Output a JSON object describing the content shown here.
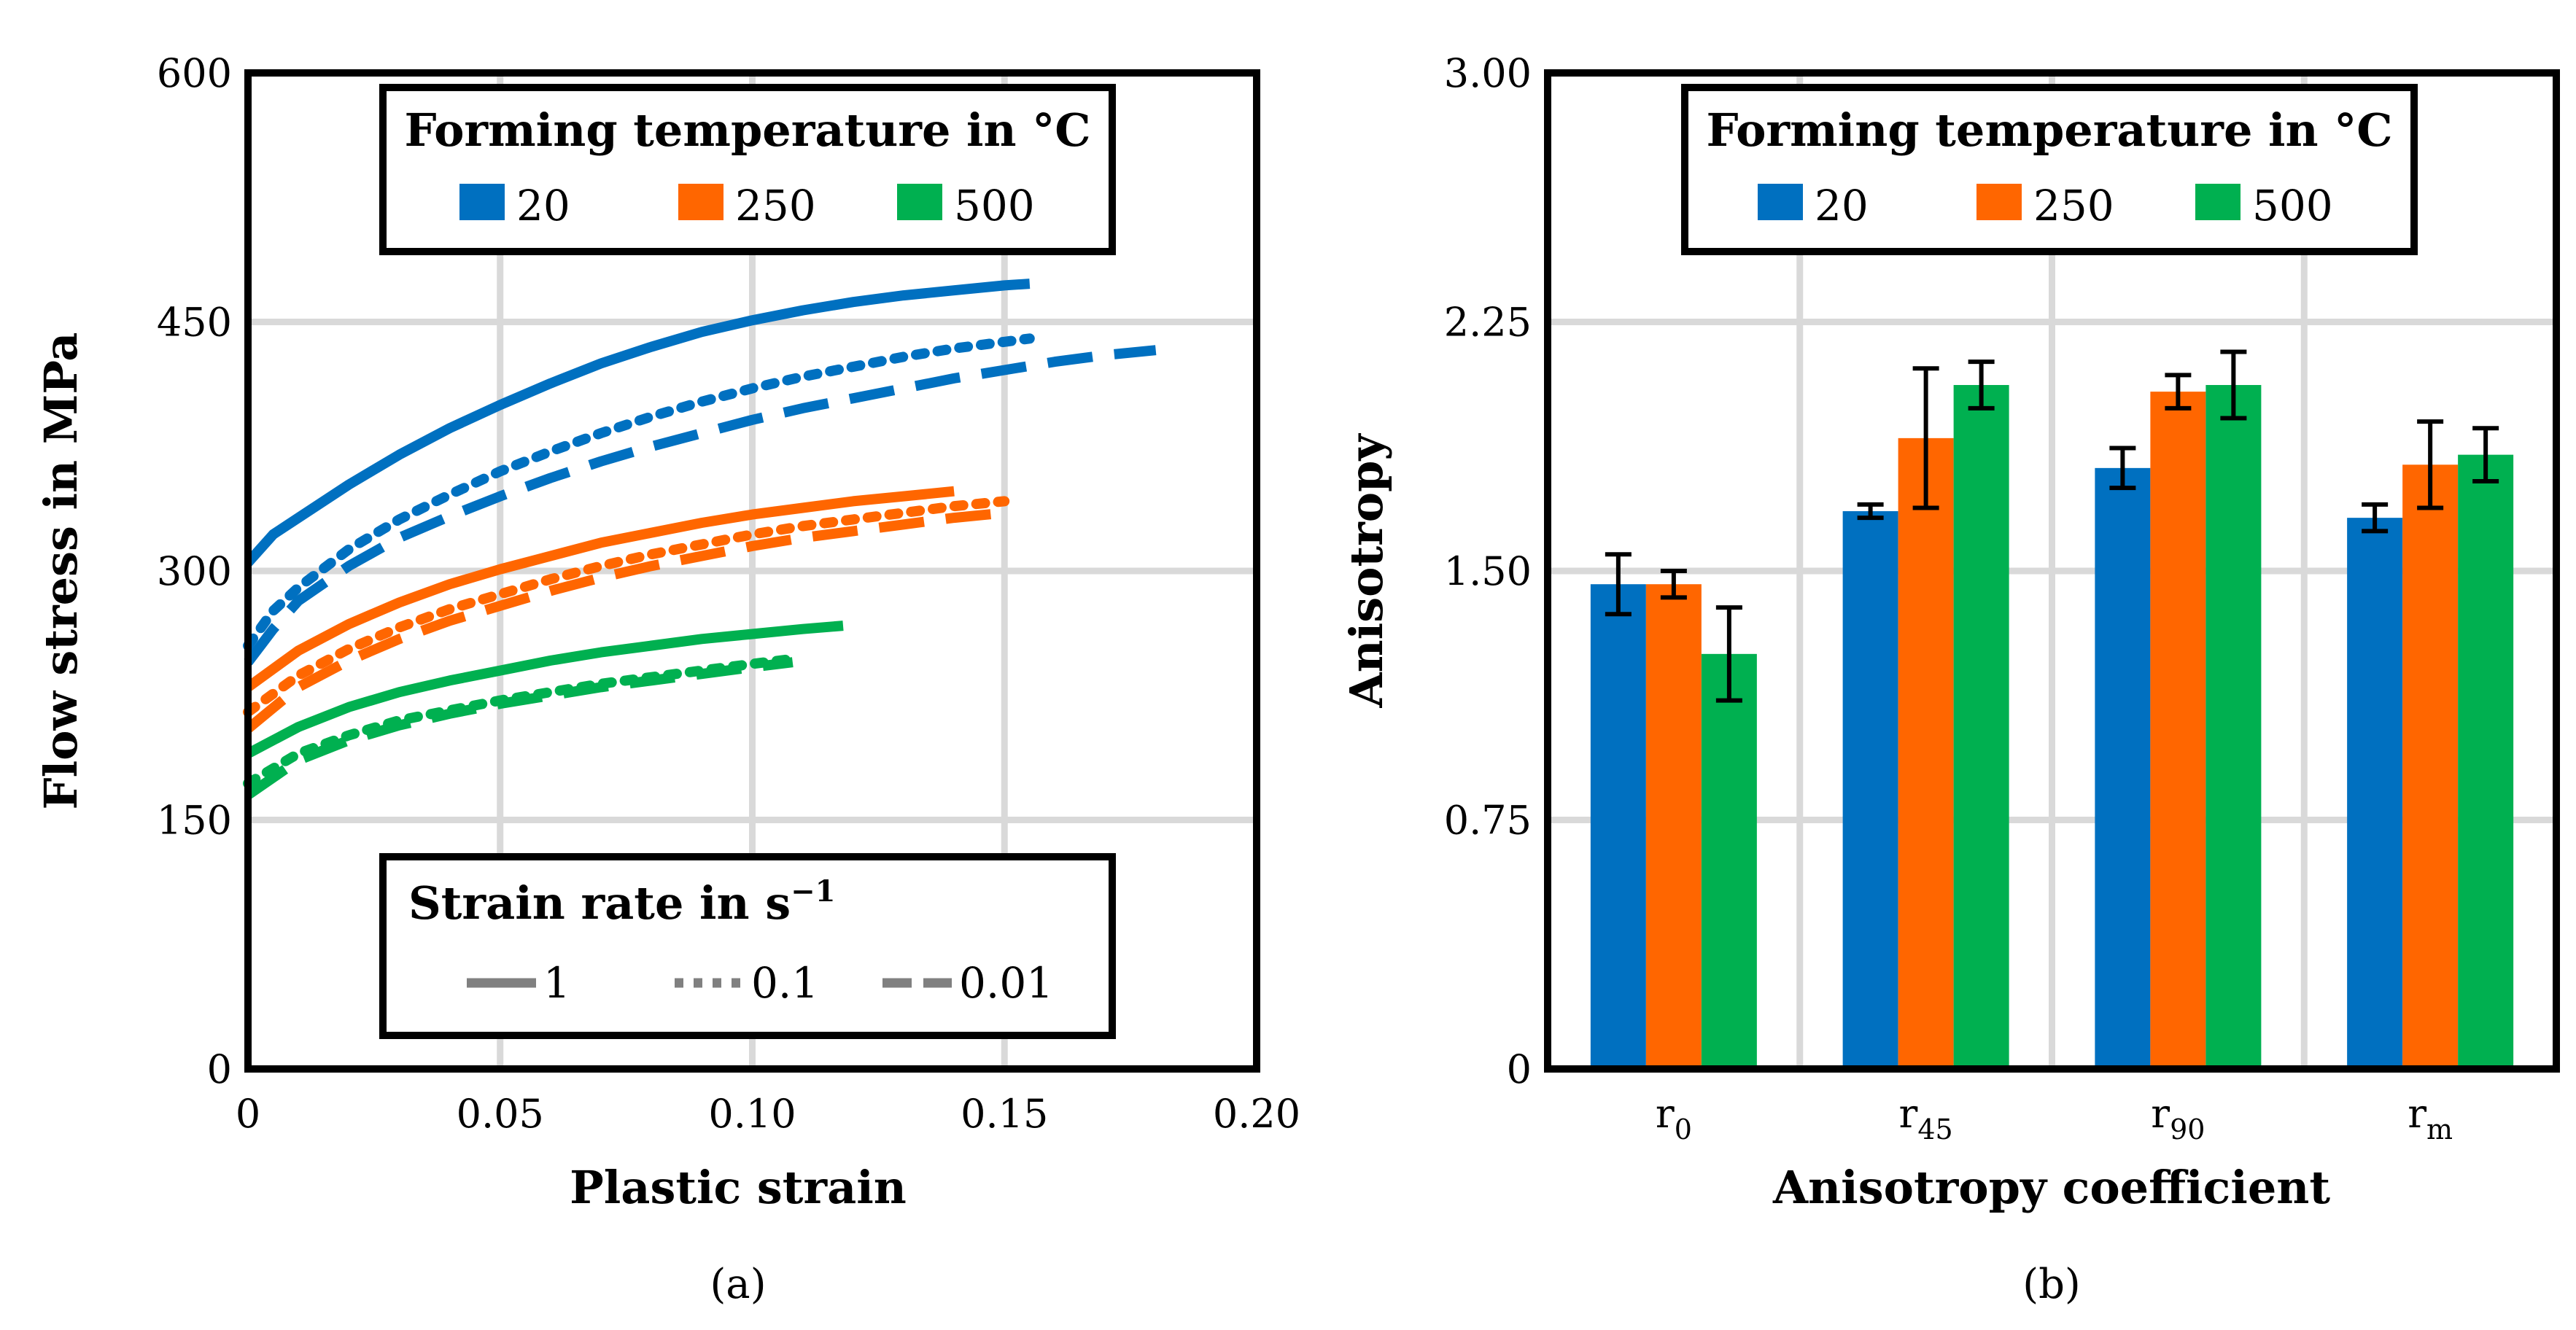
{
  "chart_data": [
    {
      "type": "line",
      "caption": "(a)",
      "xlabel": "Plastic strain",
      "ylabel": "Flow stress in MPa",
      "xlim": [
        0,
        0.2
      ],
      "ylim": [
        0,
        600
      ],
      "xticks": [
        "0",
        "0.05",
        "0.10",
        "0.15",
        "0.20"
      ],
      "yticks": [
        "0",
        "150",
        "300",
        "450",
        "600"
      ],
      "grid": true,
      "legend_temperature": {
        "title": "Forming temperature in °C",
        "entries": [
          {
            "label": "20",
            "color": "#0070C0"
          },
          {
            "label": "250",
            "color": "#FF6600"
          },
          {
            "label": "500",
            "color": "#00B050"
          }
        ]
      },
      "legend_strain_rate": {
        "title": "Strain rate in s",
        "title_sup": "−1",
        "entries": [
          {
            "label": "1",
            "style": "solid"
          },
          {
            "label": "0.1",
            "style": "dotted"
          },
          {
            "label": "0.01",
            "style": "dashed"
          }
        ],
        "color": "#808080"
      },
      "series": [
        {
          "name": "20 °C, 1 s⁻¹",
          "color": "#0070C0",
          "style": "solid",
          "x": [
            0,
            0.005,
            0.01,
            0.02,
            0.03,
            0.04,
            0.05,
            0.06,
            0.07,
            0.08,
            0.09,
            0.1,
            0.11,
            0.12,
            0.13,
            0.14,
            0.15,
            0.155
          ],
          "y": [
            305,
            322,
            332,
            352,
            370,
            386,
            400,
            413,
            425,
            435,
            444,
            451,
            457,
            462,
            466,
            469,
            472,
            473
          ]
        },
        {
          "name": "20 °C, 0.1 s⁻¹",
          "color": "#0070C0",
          "style": "dotted",
          "x": [
            0,
            0.005,
            0.01,
            0.02,
            0.03,
            0.04,
            0.05,
            0.06,
            0.07,
            0.08,
            0.09,
            0.1,
            0.11,
            0.12,
            0.13,
            0.14,
            0.15,
            0.155
          ],
          "y": [
            255,
            276,
            290,
            313,
            331,
            346,
            360,
            372,
            383,
            393,
            402,
            410,
            417,
            423,
            429,
            434,
            438,
            440
          ]
        },
        {
          "name": "20 °C, 0.01 s⁻¹",
          "color": "#0070C0",
          "style": "dashed",
          "x": [
            0,
            0.005,
            0.01,
            0.02,
            0.03,
            0.04,
            0.05,
            0.06,
            0.07,
            0.08,
            0.09,
            0.1,
            0.11,
            0.12,
            0.13,
            0.14,
            0.15,
            0.16,
            0.17,
            0.18
          ],
          "y": [
            245,
            265,
            282,
            303,
            320,
            333,
            345,
            356,
            366,
            375,
            383,
            391,
            398,
            404,
            410,
            416,
            421,
            426,
            430,
            433
          ]
        },
        {
          "name": "250 °C, 1 s⁻¹",
          "color": "#FF6600",
          "style": "solid",
          "x": [
            0,
            0.01,
            0.02,
            0.03,
            0.04,
            0.05,
            0.06,
            0.07,
            0.08,
            0.09,
            0.1,
            0.11,
            0.12,
            0.13,
            0.14
          ],
          "y": [
            230,
            252,
            268,
            281,
            292,
            301,
            309,
            317,
            323,
            329,
            334,
            338,
            342,
            345,
            348
          ]
        },
        {
          "name": "250 °C, 0.1 s⁻¹",
          "color": "#FF6600",
          "style": "dotted",
          "x": [
            0,
            0.01,
            0.02,
            0.03,
            0.04,
            0.05,
            0.06,
            0.07,
            0.08,
            0.09,
            0.1,
            0.11,
            0.12,
            0.13,
            0.14,
            0.15
          ],
          "y": [
            215,
            237,
            253,
            266,
            277,
            286,
            295,
            303,
            310,
            316,
            322,
            327,
            331,
            335,
            339,
            342
          ]
        },
        {
          "name": "250 °C, 0.01 s⁻¹",
          "color": "#FF6600",
          "style": "dashed",
          "x": [
            0,
            0.01,
            0.02,
            0.03,
            0.04,
            0.05,
            0.06,
            0.07,
            0.08,
            0.09,
            0.1,
            0.11,
            0.12,
            0.13,
            0.14,
            0.15
          ],
          "y": [
            205,
            230,
            246,
            259,
            270,
            279,
            288,
            296,
            303,
            309,
            315,
            320,
            324,
            328,
            332,
            335
          ]
        },
        {
          "name": "500 °C, 1 s⁻¹",
          "color": "#00B050",
          "style": "solid",
          "x": [
            0,
            0.01,
            0.02,
            0.03,
            0.04,
            0.05,
            0.06,
            0.07,
            0.08,
            0.09,
            0.1,
            0.11,
            0.118
          ],
          "y": [
            190,
            206,
            218,
            227,
            234,
            240,
            246,
            251,
            255,
            259,
            262,
            265,
            267
          ]
        },
        {
          "name": "500 °C, 0.1 s⁻¹",
          "color": "#00B050",
          "style": "dotted",
          "x": [
            0,
            0.01,
            0.02,
            0.03,
            0.04,
            0.05,
            0.06,
            0.07,
            0.08,
            0.09,
            0.1,
            0.108
          ],
          "y": [
            172,
            190,
            201,
            210,
            216,
            222,
            227,
            232,
            236,
            240,
            244,
            247
          ]
        },
        {
          "name": "500 °C, 0.01 s⁻¹",
          "color": "#00B050",
          "style": "dashed",
          "x": [
            0,
            0.01,
            0.02,
            0.03,
            0.04,
            0.05,
            0.06,
            0.07,
            0.08,
            0.09,
            0.1,
            0.108
          ],
          "y": [
            165,
            186,
            198,
            207,
            214,
            220,
            225,
            230,
            234,
            238,
            242,
            245
          ]
        }
      ]
    },
    {
      "type": "bar",
      "caption": "(b)",
      "xlabel": "Anisotropy coefficient",
      "ylabel": "Anisotropy",
      "ylim": [
        0,
        3
      ],
      "yticks": [
        "0",
        "0.75",
        "1.50",
        "2.25",
        "3.00"
      ],
      "grid": true,
      "categories": [
        {
          "base": "r",
          "sub": "0"
        },
        {
          "base": "r",
          "sub": "45"
        },
        {
          "base": "r",
          "sub": "90"
        },
        {
          "base": "r",
          "sub": "m"
        }
      ],
      "legend": {
        "title": "Forming temperature in °C",
        "entries": [
          {
            "label": "20",
            "color": "#0070C0"
          },
          {
            "label": "250",
            "color": "#FF6600"
          },
          {
            "label": "500",
            "color": "#00B050"
          }
        ]
      },
      "series": [
        {
          "name": "20",
          "color": "#0070C0",
          "values": [
            1.46,
            1.68,
            1.81,
            1.66
          ],
          "errors": [
            0.09,
            0.02,
            0.06,
            0.04
          ]
        },
        {
          "name": "250",
          "color": "#FF6600",
          "values": [
            1.46,
            1.9,
            2.04,
            1.82
          ],
          "errors": [
            0.04,
            0.21,
            0.05,
            0.13
          ]
        },
        {
          "name": "500",
          "color": "#00B050",
          "values": [
            1.25,
            2.06,
            2.06,
            1.85
          ],
          "errors": [
            0.14,
            0.07,
            0.1,
            0.08
          ]
        }
      ]
    }
  ]
}
